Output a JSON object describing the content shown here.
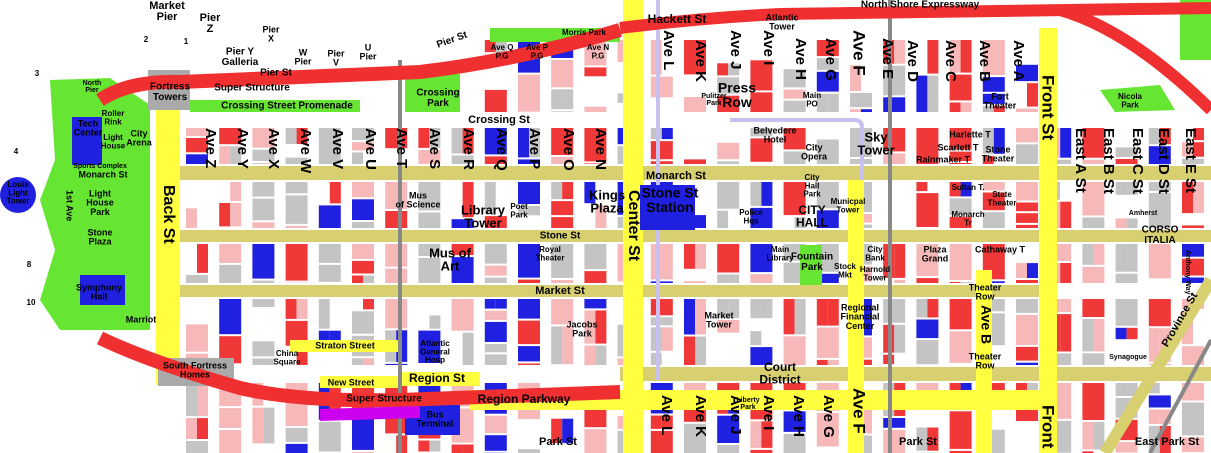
{
  "labels": [
    [
      "Market",
      "Pier"
    ],
    [
      "Pier",
      "Z"
    ],
    [
      "Pier",
      "X"
    ],
    [
      "Pier Y",
      "Galleria"
    ],
    [
      "W",
      "Pier"
    ],
    [
      "Pier",
      "V"
    ],
    [
      "U",
      "Pier"
    ],
    [
      "Pier St"
    ],
    [
      "Pier St"
    ],
    [
      "Hackett St"
    ],
    [
      "Atlantic",
      "Tower"
    ],
    [
      "North Shore Expressway"
    ],
    [
      "Morris Park"
    ],
    [
      "Ave Q",
      "P.G"
    ],
    [
      "Ave P",
      "P.G"
    ],
    [
      "Ave N",
      "P.G"
    ],
    [
      "Super Structure"
    ],
    [
      "Crossing Street Promenade"
    ],
    [
      "Fortress",
      "Towers"
    ],
    [
      "North",
      "Pier"
    ],
    [
      "Crossing",
      "Park"
    ],
    [
      "Crossing St"
    ],
    [
      "Ave L"
    ],
    [
      "Ave K"
    ],
    [
      "Ave J"
    ],
    [
      "Ave I"
    ],
    [
      "Ave H"
    ],
    [
      "Ave G"
    ],
    [
      "Ave F"
    ],
    [
      "Ave E"
    ],
    [
      "Ave D"
    ],
    [
      "Ave C"
    ],
    [
      "Ave B"
    ],
    [
      "Ave A"
    ],
    [
      "Front St"
    ],
    [
      "Pulitzer",
      "Park"
    ],
    [
      "Press",
      "Row"
    ],
    [
      "Main",
      "PO"
    ],
    [
      "Fort",
      "Theater"
    ],
    [
      "Nicola",
      "Park"
    ],
    [
      "Roller",
      "Rink"
    ],
    [
      "Tech",
      "Center"
    ],
    [
      "Light",
      "House"
    ],
    [
      "City",
      "Arena"
    ],
    [
      "Sports Complex"
    ],
    [
      "Monarch St"
    ],
    [
      "Louis",
      "Light",
      "Tower"
    ],
    [
      "1st Ave"
    ],
    [
      "Light",
      "House",
      "Park"
    ],
    [
      "Stone",
      "Plaza"
    ],
    [
      "Symphony",
      "Hall"
    ],
    [
      "Marriot"
    ],
    [
      "South Fortress",
      "Homes"
    ],
    [
      "Ave Z"
    ],
    [
      "Ave Y"
    ],
    [
      "Ave X"
    ],
    [
      "Ave W"
    ],
    [
      "Ave V"
    ],
    [
      "Ave U"
    ],
    [
      "Ave T"
    ],
    [
      "Ave S"
    ],
    [
      "Ave R"
    ],
    [
      "Ave Q"
    ],
    [
      "Ave P"
    ],
    [
      "Ave O"
    ],
    [
      "Ave N"
    ],
    [
      "Back St"
    ],
    [
      "Monarch St"
    ],
    [
      "Belvedere",
      "Hotel"
    ],
    [
      "City",
      "Opera"
    ],
    [
      "Sky",
      "Tower"
    ],
    [
      "Harlette T"
    ],
    [
      "Scarlett T"
    ],
    [
      "Rainmaker T"
    ],
    [
      "Stone",
      "Theater"
    ],
    [
      "East A St"
    ],
    [
      "East B St"
    ],
    [
      "East C St"
    ],
    [
      "East D St"
    ],
    [
      "East E St"
    ],
    [
      "Mus",
      "of Science"
    ],
    [
      "Library",
      "Tower"
    ],
    [
      "Poet",
      "Park"
    ],
    [
      "Kings",
      "Plaza"
    ],
    [
      "Stone St",
      "Station"
    ],
    [
      "Center St"
    ],
    [
      "Police",
      "Hqs"
    ],
    [
      "City",
      "Hall",
      "Park"
    ],
    [
      "CITY",
      "HALL"
    ],
    [
      "Municpal",
      "Tower"
    ],
    [
      "Sultan T."
    ],
    [
      "State",
      "Theater"
    ],
    [
      "Monarch",
      "Tr"
    ],
    [
      "Amherst"
    ],
    [
      "CORSO",
      "ITALIA"
    ],
    [
      "Anthony Way"
    ],
    [
      "Stone St"
    ],
    [
      "Royal",
      "Theater"
    ],
    [
      "Mus of",
      "Art"
    ],
    [
      "Main",
      "Library"
    ],
    [
      "Fountain",
      "Park"
    ],
    [
      "City",
      "Bank"
    ],
    [
      "Stock",
      "Mkt"
    ],
    [
      "Harnold",
      "Tower"
    ],
    [
      "Plaza",
      "Grand"
    ],
    [
      "Cathaway T"
    ],
    [
      "Market St"
    ],
    [
      "Theater",
      "Row"
    ],
    [
      "Ave B"
    ],
    [
      "Province St"
    ],
    [
      "Market",
      "Tower"
    ],
    [
      "Regional",
      "Financial",
      "Center"
    ],
    [
      "Jacobs",
      "Park"
    ],
    [
      "Straton Street"
    ],
    [
      "China",
      "Square"
    ],
    [
      "Atlantic",
      "General",
      "Hosp"
    ],
    [
      "Theater",
      "Row"
    ],
    [
      "Synagogue"
    ],
    [
      "Court",
      "District"
    ],
    [
      "New Street"
    ],
    [
      "Region St"
    ],
    [
      "Super Structure"
    ],
    [
      "Region Parkway"
    ],
    [
      "Bus",
      "Terminal"
    ],
    [
      "Liberty",
      "Park"
    ],
    [
      "Ave L"
    ],
    [
      "Ave K"
    ],
    [
      "Ave J"
    ],
    [
      "Ave I"
    ],
    [
      "Ave H"
    ],
    [
      "Ave G"
    ],
    [
      "Ave F"
    ],
    [
      "Front St"
    ],
    [
      "Park St"
    ],
    [
      "Park St"
    ],
    [
      "East Park St"
    ],
    [
      "2"
    ],
    [
      "1"
    ],
    [
      "3"
    ],
    [
      "4"
    ],
    [
      "8"
    ],
    [
      "10"
    ]
  ]
}
